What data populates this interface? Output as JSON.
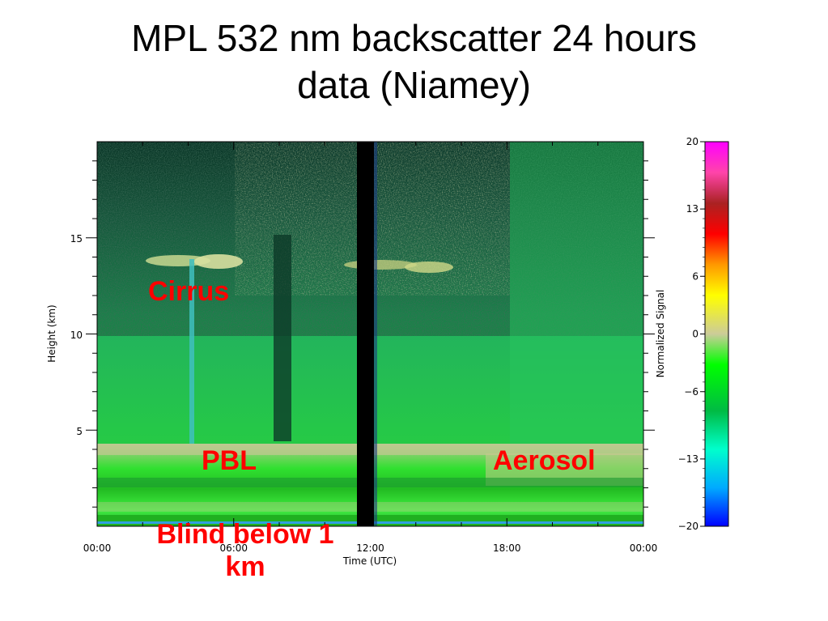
{
  "slide": {
    "title_line1": "MPL 532 nm backscatter 24 hours",
    "title_line2": "data (Niamey)"
  },
  "annotations": {
    "cirrus": "Cirrus",
    "pbl": "PBL",
    "aerosol": "Aerosol",
    "blind": "Blind below 1 km"
  },
  "colors": {
    "annotation": "#ff0000",
    "title": "#000000"
  },
  "chart_data": {
    "type": "heatmap",
    "title": "",
    "xlabel": "Time (UTC)",
    "ylabel": "Height (km)",
    "colorbar_label": "Normalized Signal",
    "x_ticks": [
      "00:00",
      "06:00",
      "12:00",
      "18:00",
      "00:00"
    ],
    "y_ticks": [
      5,
      10,
      15
    ],
    "ylim": [
      0,
      20
    ],
    "colorbar_ticks": [
      -20,
      -13,
      -6,
      0,
      6,
      13,
      20
    ],
    "colorbar_range": [
      -20,
      20
    ],
    "colormap_stops": [
      "#0000ff",
      "#00aaff",
      "#00ffcc",
      "#00cc00",
      "#00ff00",
      "#cccc88",
      "#ffff00",
      "#ff8800",
      "#ff0000",
      "#aa0000",
      "#ff00ff"
    ],
    "features": [
      {
        "name": "Cirrus",
        "height_km": [
          13.5,
          14.5
        ],
        "time_hours": [
          2.5,
          16.5
        ]
      },
      {
        "name": "PBL",
        "height_km": [
          0,
          4.5
        ],
        "time_hours": [
          0,
          24
        ]
      },
      {
        "name": "Aerosol",
        "height_km": [
          1,
          4
        ],
        "time_hours": [
          12,
          24
        ]
      },
      {
        "name": "Blind below 1 km",
        "height_km": [
          0,
          1
        ],
        "time_hours": [
          0,
          24
        ]
      }
    ],
    "data_gap_hours": [
      11.5,
      12.1
    ]
  }
}
